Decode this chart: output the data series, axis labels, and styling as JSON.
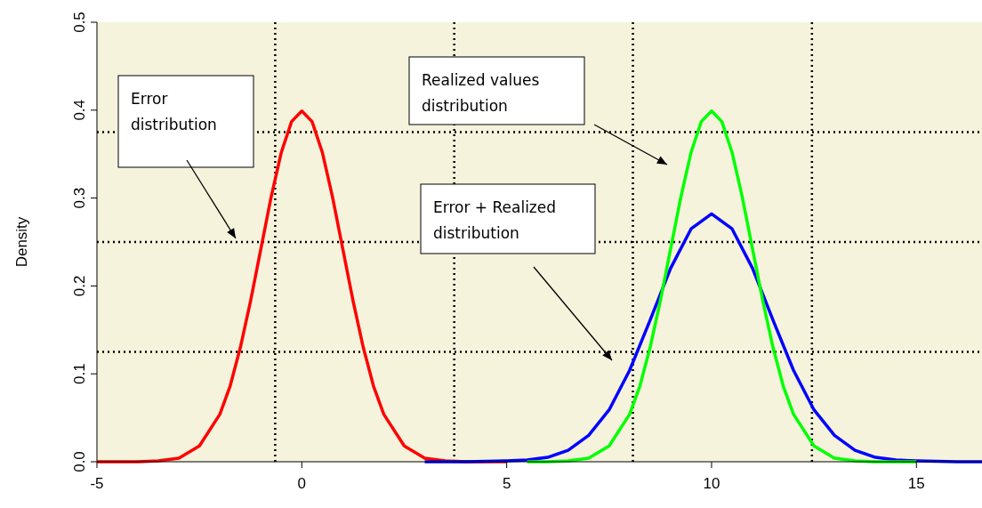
{
  "chart_data": {
    "type": "line",
    "ylabel": "Density",
    "xlim": [
      -5,
      16.6
    ],
    "ylim": [
      0,
      0.5
    ],
    "xticks": [
      -5,
      0,
      5,
      10,
      15
    ],
    "yticks": [
      {
        "value": 0,
        "label": "0.0"
      },
      0.1,
      0.2,
      0.3,
      0.4,
      0.5
    ],
    "grid": false,
    "line_style": "solid",
    "series": [
      {
        "color": "#ff0000",
        "x": [
          -5,
          -4,
          -3.5,
          -3,
          -2.5,
          -2,
          -1.75,
          -1.5,
          -1.25,
          -1,
          -0.75,
          -0.5,
          -0.25,
          0,
          0.25,
          0.5,
          0.75,
          1,
          1.25,
          1.5,
          1.75,
          2,
          2.5,
          3,
          3.5,
          4,
          5
        ],
        "values": [
          0,
          0,
          0.001,
          0.004,
          0.018,
          0.054,
          0.086,
          0.13,
          0.183,
          0.242,
          0.301,
          0.352,
          0.387,
          0.399,
          0.387,
          0.352,
          0.301,
          0.242,
          0.183,
          0.13,
          0.086,
          0.054,
          0.018,
          0.004,
          0.001,
          0,
          0
        ]
      },
      {
        "color": "#0000ff",
        "x": [
          3,
          4,
          5,
          5.5,
          6,
          6.5,
          7,
          7.5,
          8,
          8.5,
          9,
          9.5,
          10,
          10.5,
          11,
          11.5,
          12,
          12.5,
          13,
          13.5,
          14,
          14.5,
          15,
          16,
          16.6
        ],
        "values": [
          0,
          0,
          0.001,
          0.002,
          0.005,
          0.013,
          0.03,
          0.059,
          0.104,
          0.161,
          0.22,
          0.265,
          0.282,
          0.265,
          0.22,
          0.161,
          0.104,
          0.059,
          0.03,
          0.013,
          0.005,
          0.002,
          0.001,
          0,
          0
        ]
      },
      {
        "color": "#00ff00",
        "x": [
          5.5,
          6,
          6.5,
          7,
          7.5,
          8,
          8.25,
          8.5,
          8.75,
          9,
          9.25,
          9.5,
          9.75,
          10,
          10.25,
          10.5,
          10.75,
          11,
          11.25,
          11.5,
          11.75,
          12,
          12.5,
          13,
          13.5,
          14,
          15
        ],
        "values": [
          0,
          0,
          0.001,
          0.004,
          0.018,
          0.054,
          0.086,
          0.13,
          0.183,
          0.242,
          0.301,
          0.352,
          0.387,
          0.399,
          0.387,
          0.352,
          0.301,
          0.242,
          0.183,
          0.13,
          0.086,
          0.054,
          0.018,
          0.004,
          0.001,
          0,
          0
        ]
      }
    ],
    "ref_lines": [
      {
        "axis": "x",
        "value": -0.65,
        "line_style": "dotted",
        "color": "#000000"
      },
      {
        "axis": "x",
        "value": 3.72,
        "line_style": "dotted",
        "color": "#000000"
      },
      {
        "axis": "x",
        "value": 8.08,
        "line_style": "dotted",
        "color": "#000000"
      },
      {
        "axis": "x",
        "value": 12.45,
        "line_style": "dotted",
        "color": "#000000"
      },
      {
        "axis": "y",
        "value": 0.125,
        "line_style": "dotted",
        "color": "#000000"
      },
      {
        "axis": "y",
        "value": 0.25,
        "line_style": "dotted",
        "color": "#000000"
      },
      {
        "axis": "y",
        "value": 0.375,
        "line_style": "dotted",
        "color": "#000000"
      }
    ],
    "annotations": [
      "Error distribution",
      "Realized values distribution",
      "Error + Realized distribution"
    ]
  }
}
